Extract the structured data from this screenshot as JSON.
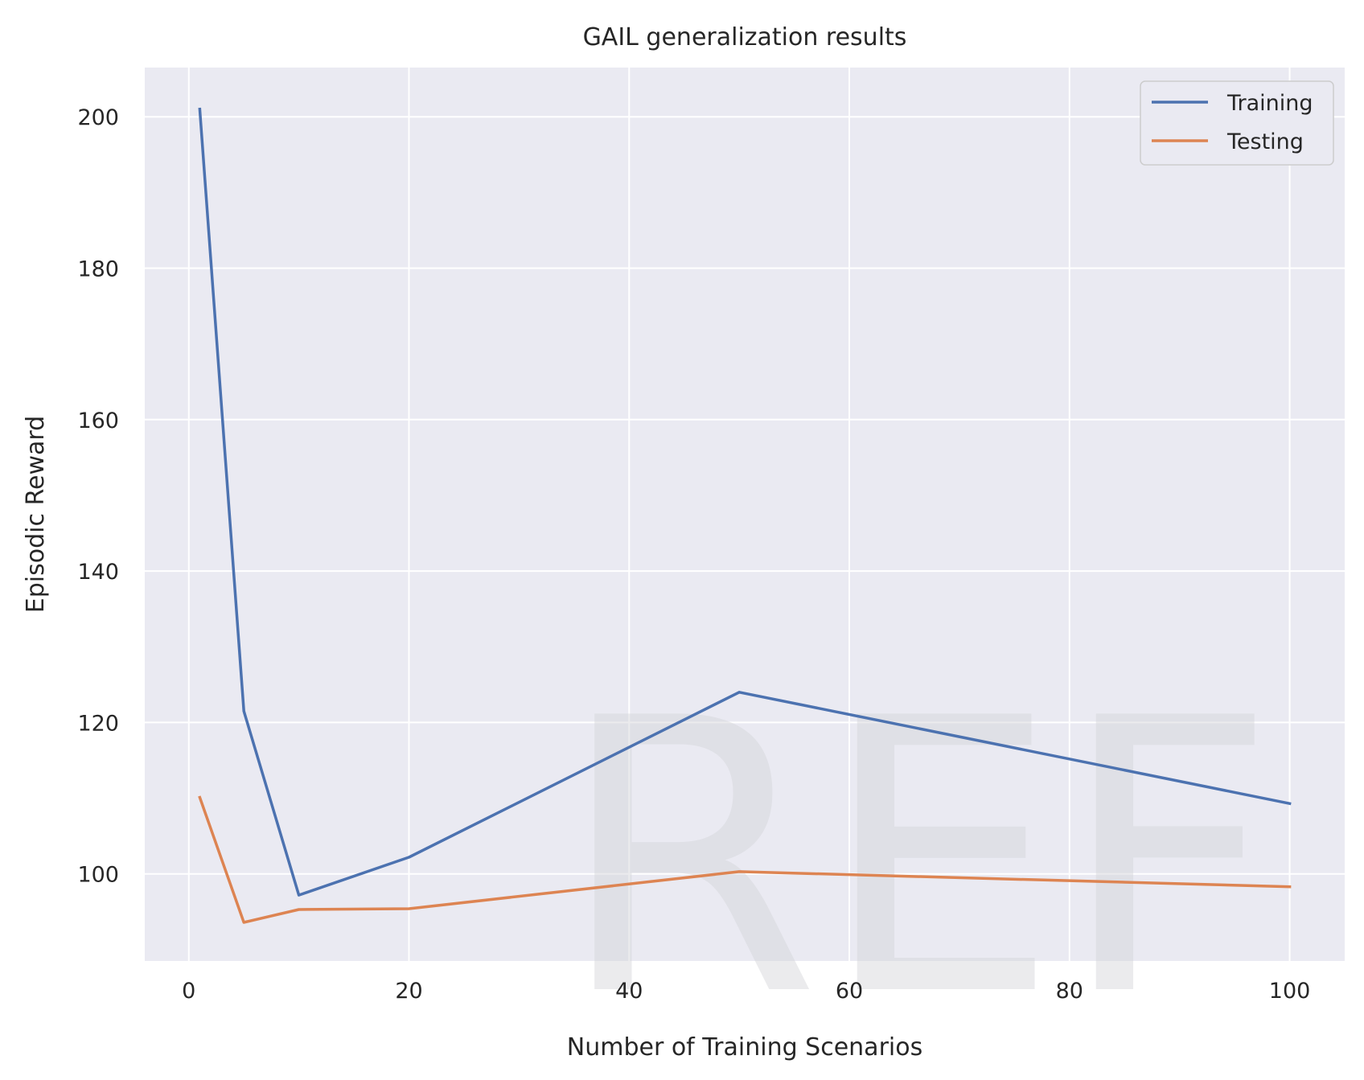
{
  "chart_data": {
    "type": "line",
    "title": "GAIL generalization results",
    "xlabel": "Number of Training Scenarios",
    "ylabel": "Episodic Reward",
    "xlim": [
      -4,
      105
    ],
    "ylim": [
      88.5,
      206.5
    ],
    "xticks": [
      0,
      20,
      40,
      60,
      80,
      100
    ],
    "yticks": [
      100,
      120,
      140,
      160,
      180,
      200
    ],
    "grid": true,
    "legend_position": "top-right",
    "series": [
      {
        "name": "Training",
        "color": "#4c72b0",
        "x": [
          1,
          5,
          10,
          20,
          50,
          100
        ],
        "y": [
          201,
          121.5,
          97.2,
          102.2,
          124,
          109.3
        ]
      },
      {
        "name": "Testing",
        "color": "#dd8452",
        "x": [
          1,
          5,
          10,
          20,
          50,
          100
        ],
        "y": [
          110.1,
          93.6,
          95.3,
          95.4,
          100.3,
          98.3
        ]
      }
    ],
    "watermark": "REF"
  }
}
